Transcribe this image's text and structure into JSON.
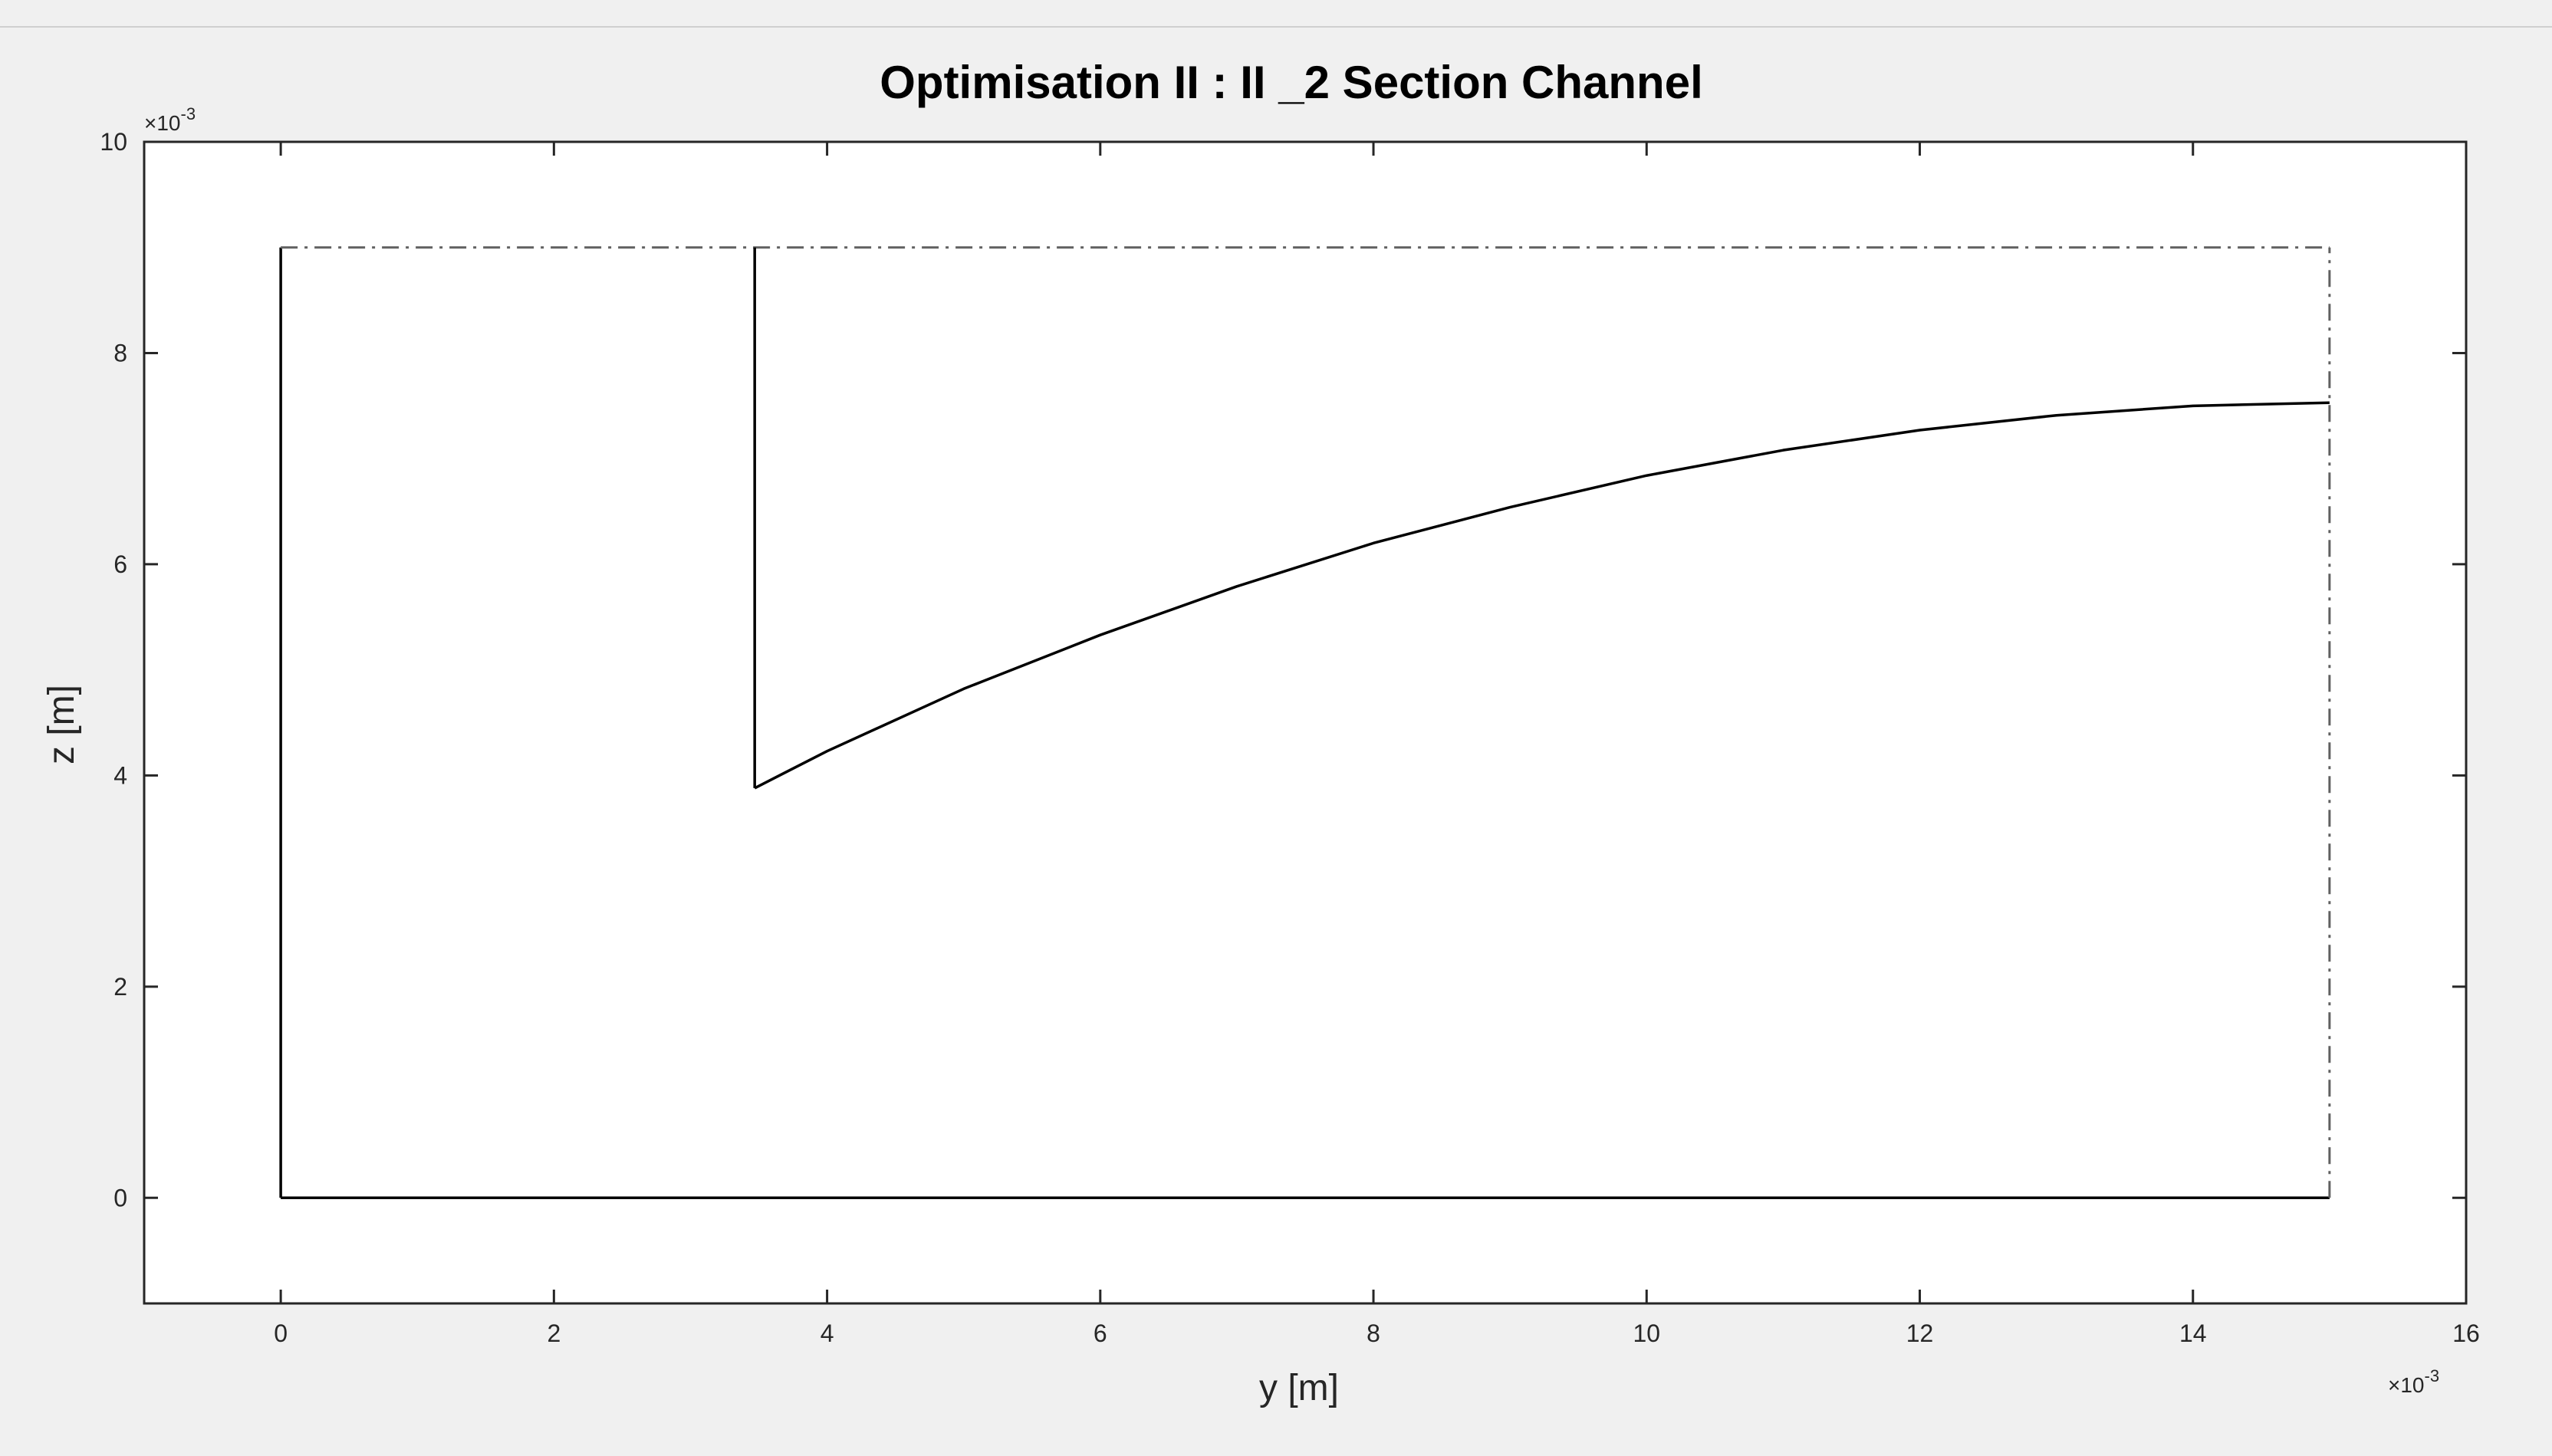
{
  "figure": {
    "background": "#f0f0f0",
    "axes_background": "#ffffff",
    "axis_color": "#262626"
  },
  "chart_data": {
    "type": "line",
    "title": "Optimisation II : II _2 Section Channel",
    "xlabel": "y [m]",
    "ylabel": "z [m]",
    "x_exponent_label": "×10",
    "x_exponent_power": "-3",
    "y_exponent_label": "×10",
    "y_exponent_power": "-3",
    "xlim": [
      -1,
      16
    ],
    "ylim": [
      -1,
      10
    ],
    "scale_note": "values in units of 1e-3 m",
    "xticks": [
      0,
      2,
      4,
      6,
      8,
      10,
      12,
      14,
      16
    ],
    "yticks": [
      0,
      2,
      4,
      6,
      8,
      10
    ],
    "grid": false,
    "box": true,
    "series": [
      {
        "id": "left-wall",
        "style": "solid",
        "color": "#000000",
        "x": [
          0,
          0
        ],
        "y": [
          9.0,
          0
        ]
      },
      {
        "id": "bottom-wall",
        "style": "solid",
        "color": "#000000",
        "x": [
          0,
          15
        ],
        "y": [
          0,
          0
        ]
      },
      {
        "id": "top-boundary",
        "style": "dashdot",
        "color": "#606060",
        "x": [
          0,
          15
        ],
        "y": [
          9.0,
          9.0
        ]
      },
      {
        "id": "right-boundary",
        "style": "dashdot",
        "color": "#606060",
        "x": [
          15,
          15
        ],
        "y": [
          0,
          9.0
        ]
      },
      {
        "id": "fin-vertical",
        "style": "solid",
        "color": "#000000",
        "x": [
          3.47,
          3.47
        ],
        "y": [
          9.0,
          3.88
        ]
      },
      {
        "id": "fin-curve",
        "style": "solid",
        "color": "#000000",
        "x": [
          3.47,
          4.0,
          5.0,
          6.0,
          7.0,
          8.0,
          9.0,
          10.0,
          11.0,
          12.0,
          13.0,
          14.0,
          15.0
        ],
        "y": [
          3.88,
          4.23,
          4.82,
          5.33,
          5.79,
          6.2,
          6.54,
          6.84,
          7.08,
          7.27,
          7.41,
          7.5,
          7.53
        ]
      }
    ]
  }
}
